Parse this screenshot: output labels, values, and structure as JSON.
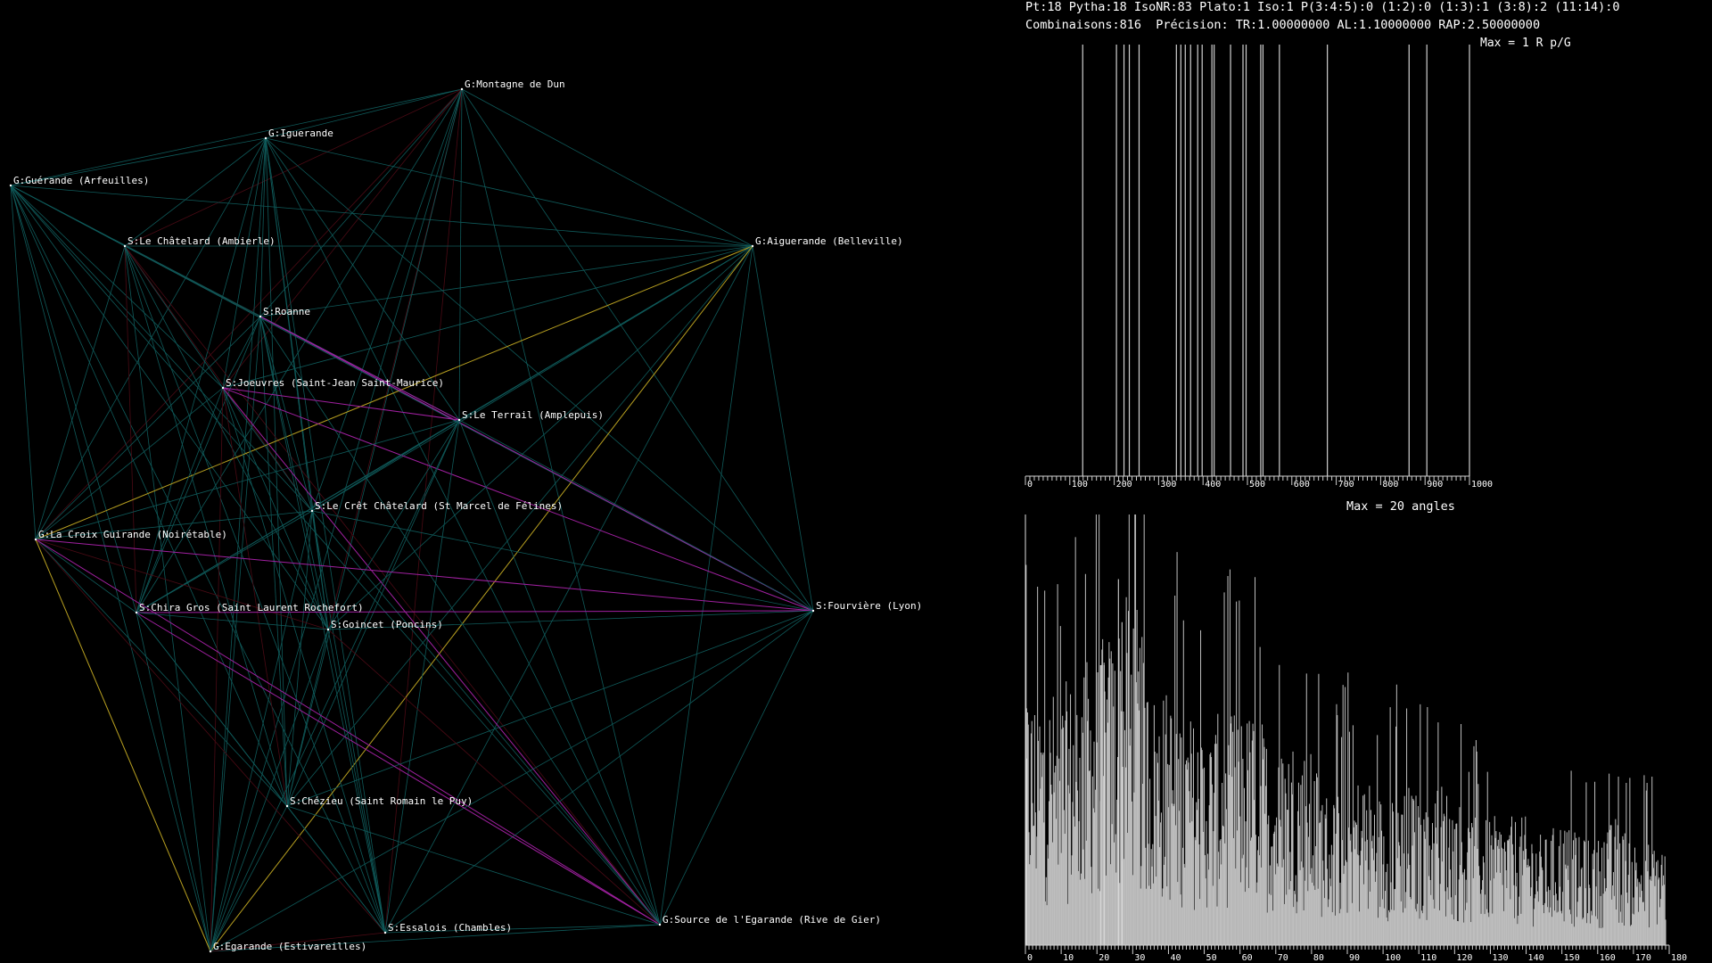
{
  "header": {
    "line1": "Pt:18 Pytha:18 IsoNR:83 Plato:1 Iso:1 P(3:4:5):0 (1:2):0 (1:3):1 (3:8):2 (11:14):0",
    "line2": "Combinaisons:816  Précision: TR:1.00000000 AL:1.10000000 RAP:2.50000000"
  },
  "colors": {
    "background": "#000000",
    "edge_default": "#0f5a5a",
    "edge_magenta": "#a020a0",
    "edge_yellow": "#b8a020",
    "edge_dark_red": "#4a0a14",
    "bar": "#bfbfbf"
  },
  "network": {
    "nodes": [
      {
        "id": "montagne",
        "label": "G:Montagne de Dun"
      },
      {
        "id": "iguerande",
        "label": "G:Iguerande"
      },
      {
        "id": "guerande",
        "label": "G:Guérande (Arfeuilles)"
      },
      {
        "id": "chatelard",
        "label": "S:Le Châtelard (Ambierle)"
      },
      {
        "id": "aiguerande",
        "label": "G:Aiguerande (Belleville)"
      },
      {
        "id": "roanne",
        "label": "S:Roanne"
      },
      {
        "id": "joeuvres",
        "label": "S:Joeuvres (Saint-Jean Saint-Maurice)"
      },
      {
        "id": "terrail",
        "label": "S:Le Terrail (Amplepuis)"
      },
      {
        "id": "cret",
        "label": "S:Le Crêt Châtelard (St Marcel de Félines)"
      },
      {
        "id": "croix",
        "label": "G:La Croix Guirande (Noirétable)"
      },
      {
        "id": "fourviere",
        "label": "S:Fourvière (Lyon)"
      },
      {
        "id": "chira",
        "label": "S:Chira Gros (Saint Laurent Rochefort)"
      },
      {
        "id": "goincet",
        "label": "S:Goincet (Poncins)"
      },
      {
        "id": "chezieu",
        "label": "S:Chézieu (Saint Romain le Puy)"
      },
      {
        "id": "source",
        "label": "G:Source de l'Egarande (Rive de Gier)"
      },
      {
        "id": "essalois",
        "label": "S:Essalois (Chambles)"
      },
      {
        "id": "egarande",
        "label": "G:Egarande (Estivareilles)"
      }
    ],
    "magenta_edges": [
      [
        "roanne",
        "terrail"
      ],
      [
        "joeuvres",
        "terrail"
      ],
      [
        "joeuvres",
        "fourviere"
      ],
      [
        "chira",
        "fourviere"
      ],
      [
        "chira",
        "source"
      ],
      [
        "croix",
        "source"
      ],
      [
        "roanne",
        "fourviere"
      ],
      [
        "croix",
        "fourviere"
      ],
      [
        "joeuvres",
        "source"
      ]
    ],
    "yellow_edges": [
      [
        "croix",
        "aiguerande"
      ],
      [
        "egarande",
        "aiguerande"
      ],
      [
        "croix",
        "egarande"
      ]
    ]
  },
  "chart_data": [
    {
      "type": "bar",
      "title": "Max = 1 R p/G",
      "xlim": [
        0,
        1000
      ],
      "xticks": [
        "0",
        "100",
        "200",
        "300",
        "400",
        "500",
        "600",
        "700",
        "800",
        "900",
        "1000"
      ],
      "ylim": [
        0,
        1
      ],
      "x": [
        129,
        205,
        222,
        234,
        256,
        340,
        350,
        360,
        372,
        388,
        398,
        420,
        425,
        462,
        490,
        497,
        530,
        535,
        572,
        680,
        864,
        904,
        1000
      ],
      "values": [
        1,
        1,
        1,
        1,
        1,
        1,
        1,
        1,
        1,
        1,
        1,
        1,
        1,
        1,
        1,
        1,
        1,
        1,
        1,
        1,
        1,
        1,
        1
      ]
    },
    {
      "type": "bar",
      "title": "Max = 20 angles",
      "xlim": [
        0,
        180
      ],
      "xticks": [
        "0",
        "10",
        "20",
        "30",
        "40",
        "50",
        "60",
        "70",
        "80",
        "90",
        "100",
        "110",
        "120",
        "130",
        "140",
        "150",
        "160",
        "170",
        "180"
      ],
      "ylim": [
        0,
        20
      ],
      "envelope_x": [
        0,
        5,
        10,
        15,
        20,
        25,
        30,
        35,
        40,
        45,
        50,
        55,
        60,
        65,
        70,
        75,
        80,
        85,
        90,
        95,
        100,
        105,
        110,
        115,
        120,
        125,
        130,
        135,
        140,
        145,
        150,
        155,
        160,
        165,
        170,
        175,
        179
      ],
      "envelope_values": [
        12,
        12,
        12,
        13,
        14,
        15,
        17,
        12,
        12,
        11,
        10,
        11,
        11,
        11,
        9,
        10,
        9,
        7,
        8,
        8,
        7,
        8,
        7,
        8,
        7,
        6,
        6,
        6,
        6,
        5,
        6,
        5,
        5,
        6,
        5,
        5,
        5
      ]
    }
  ]
}
